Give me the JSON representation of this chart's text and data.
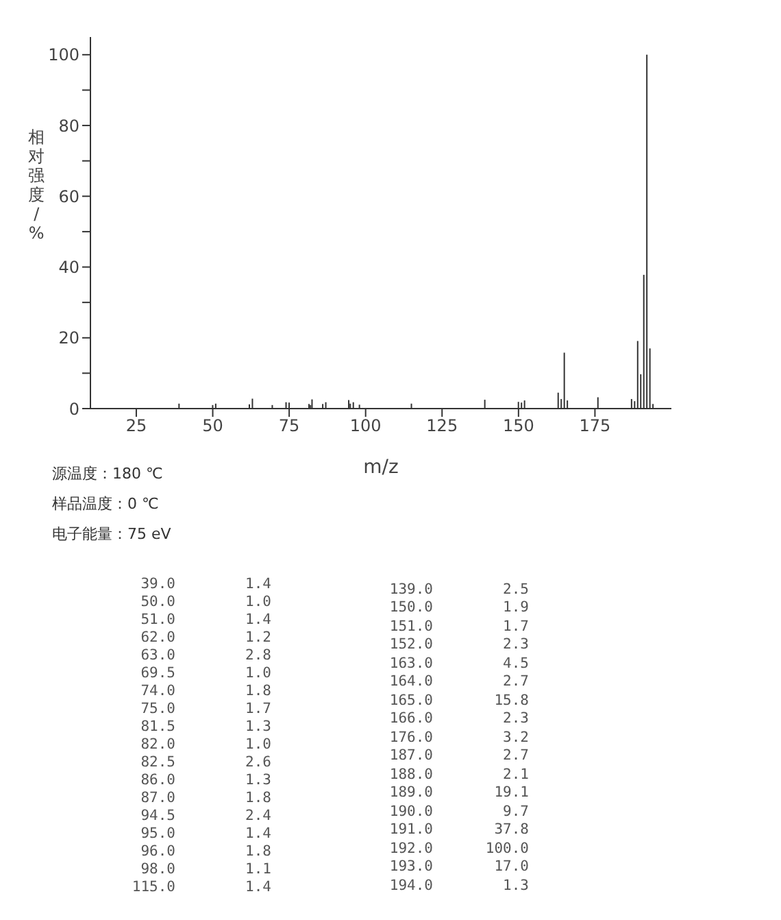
{
  "chart_data": [
    {
      "type": "bar",
      "xlabel": "m/z",
      "ylabel": "相对强度/%",
      "annotations": [
        "源温度：180 ℃",
        "样品温度：0 ℃",
        "电子能量：75 eV"
      ],
      "x": [
        39.0,
        50.0,
        51.0,
        62.0,
        63.0,
        69.5,
        74.0,
        75.0,
        81.5,
        82.0,
        82.5,
        86.0,
        87.0,
        94.5,
        95.0,
        96.0,
        98.0,
        115.0,
        139.0,
        150.0,
        151.0,
        152.0,
        163.0,
        164.0,
        165.0,
        166.0,
        176.0,
        187.0,
        188.0,
        189.0,
        190.0,
        191.0,
        192.0,
        193.0,
        194.0
      ],
      "values": [
        1.4,
        1.0,
        1.4,
        1.2,
        2.8,
        1.0,
        1.8,
        1.7,
        1.3,
        1.0,
        2.6,
        1.3,
        1.8,
        2.4,
        1.4,
        1.8,
        1.1,
        1.4,
        2.5,
        1.9,
        1.7,
        2.3,
        4.5,
        2.7,
        15.8,
        2.3,
        3.2,
        2.7,
        2.1,
        19.1,
        9.7,
        37.8,
        100.0,
        17.0,
        1.3
      ],
      "color": "#333333",
      "xlim": [
        10,
        200
      ],
      "xticks": [
        25,
        50,
        75,
        100,
        125,
        150,
        175
      ],
      "ylim": [
        0,
        105
      ],
      "yticks": [
        0,
        {
          "value": 10,
          "label": null
        },
        20,
        {
          "value": 30,
          "label": null
        },
        40,
        {
          "value": 50,
          "label": null
        },
        60,
        {
          "value": 70,
          "label": null
        },
        80,
        {
          "value": 90,
          "label": null
        },
        100
      ]
    },
    {
      "type": "other",
      "annotations": [
        "39.0",
        "1.4",
        "50.0",
        "1.0",
        "51.0",
        "1.4",
        "62.0",
        "1.2",
        "63.0",
        "2.8",
        "69.5",
        "1.0",
        "74.0",
        "1.8",
        "75.0",
        "1.7",
        "81.5",
        "1.3",
        "82.0",
        "1.0",
        "82.5",
        "2.6",
        "86.0",
        "1.3",
        "87.0",
        "1.8",
        "94.5",
        "2.4",
        "95.0",
        "1.4",
        "96.0",
        "1.8",
        "98.0",
        "1.1",
        "115.0",
        "1.4",
        "139.0",
        "2.5",
        "150.0",
        "1.9",
        "151.0",
        "1.7",
        "152.0",
        "2.3",
        "163.0",
        "4.5",
        "164.0",
        "2.7",
        "165.0",
        "15.8",
        "166.0",
        "2.3",
        "176.0",
        "3.2",
        "187.0",
        "2.7",
        "188.0",
        "2.1",
        "189.0",
        "19.1",
        "190.0",
        "9.7",
        "191.0",
        "37.8",
        "192.0",
        "100.0",
        "193.0",
        "17.0",
        "194.0",
        "1.3"
      ]
    }
  ]
}
